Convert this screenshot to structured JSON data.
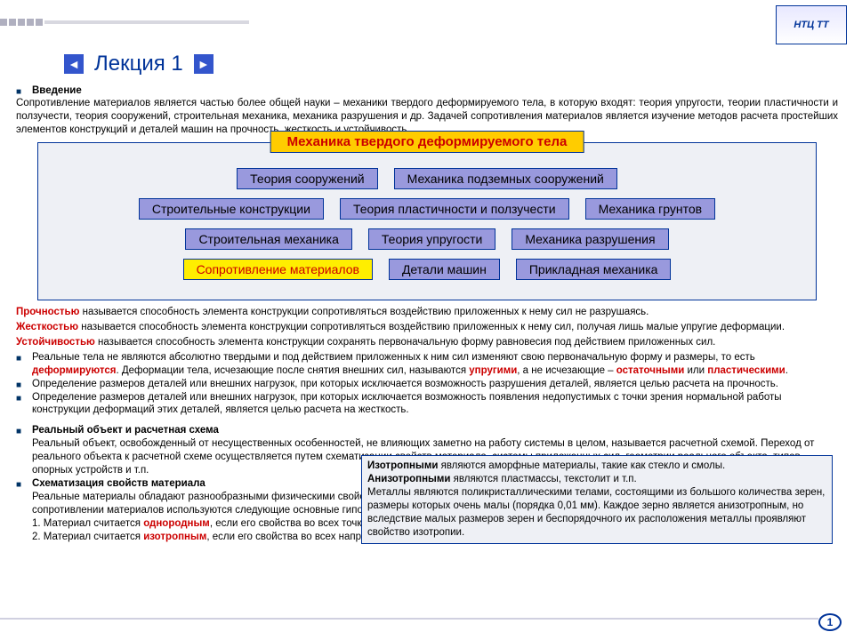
{
  "header": {
    "logo_text": "НТЦ ТТ",
    "title": "Лекция 1"
  },
  "intro": {
    "heading": "Введение",
    "body": "Сопротивление материалов является частью более общей науки – механики твердого деформируемого тела, в которую входят: теория упругости, теории пластичности и ползучести, теория сооружений, строительная механика, механика разрушения и др. Задачей сопротивления материалов является изучение методов расчета простейших элементов конструкций и деталей машин на прочность, жесткость и устойчивость."
  },
  "diagram": {
    "title": "Механика твердого деформируемого тела",
    "box_bg": "#9999dd",
    "box_hl_bg": "#ffee00",
    "border_color": "#003399",
    "title_bg": "#ffcc00",
    "title_color": "#cc0000",
    "rows": [
      [
        "Теория сооружений",
        "Механика подземных сооружений"
      ],
      [
        "Строительные конструкции",
        "Теория пластичности и ползучести",
        "Механика грунтов"
      ],
      [
        "Строительная механика",
        "Теория упругости",
        "Механика разрушения"
      ],
      [
        "Сопротивление материалов",
        "Детали машин",
        "Прикладная механика"
      ]
    ],
    "highlight": "Сопротивление материалов"
  },
  "defs": {
    "t1": "Прочностью",
    "d1": " называется способность элемента конструкции сопротивляться воздействию приложенных к нему сил не разрушаясь.",
    "t2": "Жесткостью",
    "d2": " называется способность элемента конструкции сопротивляться воздействию приложенных к нему сил, получая лишь малые упругие деформации.",
    "t3": "Устойчивостью",
    "d3": " называется способность элемента конструкции сохранять первоначальную форму равновесия под действием приложенных сил."
  },
  "bullets": {
    "b1a": "Реальные тела не являются абсолютно твердыми и под действием приложенных к ним сил изменяют свою первоначальную форму и размеры, то есть ",
    "b1_def": "деформируются",
    "b1b": ". Деформации тела, исчезающие после снятия внешних сил, называются ",
    "b1_el": "упругими",
    "b1c": ", а не исчезающие – ",
    "b1_res": "остаточными",
    "b1d": " или ",
    "b1_pl": "пластическими",
    "b1e": ".",
    "b2": "Определение размеров деталей или внешних нагрузок, при которых исключается возможность разрушения деталей, является целью расчета на прочность.",
    "b3": "Определение размеров деталей или внешних нагрузок, при которых исключается возможность появления недопустимых с точки зрения нормальной работы конструкции деформаций этих деталей, является целью расчета на жесткость."
  },
  "section2": {
    "h": "Реальный объект и расчетная схема",
    "p1": "Реальный объект, освобожденный от несущественных особенностей, не влияющих заметно на работу системы в целом, называется расчетной схемой. Переход от реального объекта к расчетной схеме осуществляется путем схематизации свойств материала, системы приложенных сил, геометрии реального объекта, типов опорных устройств и т.п.",
    "h2": "Схематизация свойств материала",
    "p2": "Реальные материалы обладают разнообразными физическими свойствами и характерной для каждого из них структурой. С целью упрощения расчетов в сопротивлении материалов используются следующие основные гипотезы о свойствах материала:",
    "p3a": "1. Материал считается ",
    "p3t": "однородным",
    "p3b": ", если его свойства во всех точках одинаковы.",
    "p4a": "2. Материал считается ",
    "p4t": "изотропным",
    "p4b": ", если его свойства во всех направлениях одинаковы."
  },
  "callout": {
    "t1": "Изотропными",
    "l1": " являются аморфные материалы, такие как стекло и смолы.",
    "t2": "Анизотропными",
    "l2": " являются пластмассы, текстолит и т.п.",
    "l3": "Металлы являются поликристаллическими телами, состоящими из большого количества зерен, размеры которых очень малы (порядка 0,01 мм). Каждое зерно является анизотропным, но вследствие малых размеров зерен и беспорядочного их расположения металлы проявляют свойство изотропии."
  },
  "page_number": "1",
  "colors": {
    "accent": "#003399",
    "red": "#cc0000"
  }
}
